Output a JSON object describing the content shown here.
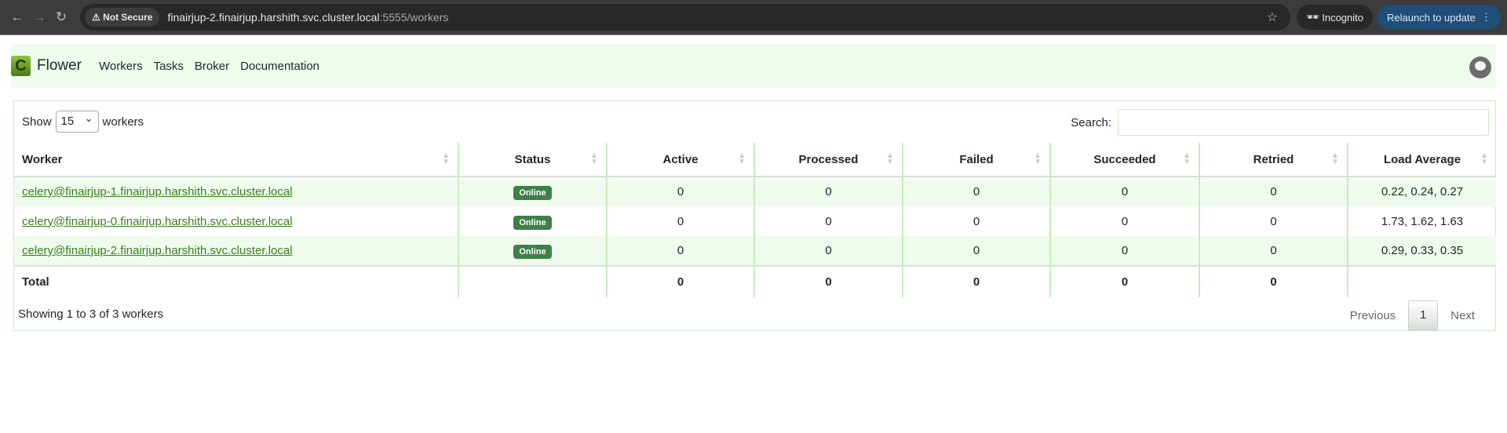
{
  "browser": {
    "security": "Not Secure",
    "url_host": "finairjup-2.finairjup.harshith.svc.cluster.local",
    "url_rest": ":5555/workers",
    "incognito": "Incognito",
    "relaunch": "Relaunch to update"
  },
  "nav": {
    "brand": "Flower",
    "logo_letter": "C",
    "links": [
      "Workers",
      "Tasks",
      "Broker",
      "Documentation"
    ]
  },
  "controls": {
    "show_label": "Show",
    "page_size": "15",
    "workers_label": "workers",
    "search_label": "Search:",
    "search_value": ""
  },
  "table": {
    "headers": [
      "Worker",
      "Status",
      "Active",
      "Processed",
      "Failed",
      "Succeeded",
      "Retried",
      "Load Average"
    ],
    "rows": [
      {
        "worker": "celery@finairjup-1.finairjup.harshith.svc.cluster.local",
        "status": "Online",
        "active": "0",
        "processed": "0",
        "failed": "0",
        "succeeded": "0",
        "retried": "0",
        "load": "0.22, 0.24, 0.27"
      },
      {
        "worker": "celery@finairjup-0.finairjup.harshith.svc.cluster.local",
        "status": "Online",
        "active": "0",
        "processed": "0",
        "failed": "0",
        "succeeded": "0",
        "retried": "0",
        "load": "1.73, 1.62, 1.63"
      },
      {
        "worker": "celery@finairjup-2.finairjup.harshith.svc.cluster.local",
        "status": "Online",
        "active": "0",
        "processed": "0",
        "failed": "0",
        "succeeded": "0",
        "retried": "0",
        "load": "0.29, 0.33, 0.35"
      }
    ],
    "total": {
      "label": "Total",
      "active": "0",
      "processed": "0",
      "failed": "0",
      "succeeded": "0",
      "retried": "0"
    }
  },
  "footer": {
    "info": "Showing 1 to 3 of 3 workers",
    "previous": "Previous",
    "page": "1",
    "next": "Next"
  }
}
